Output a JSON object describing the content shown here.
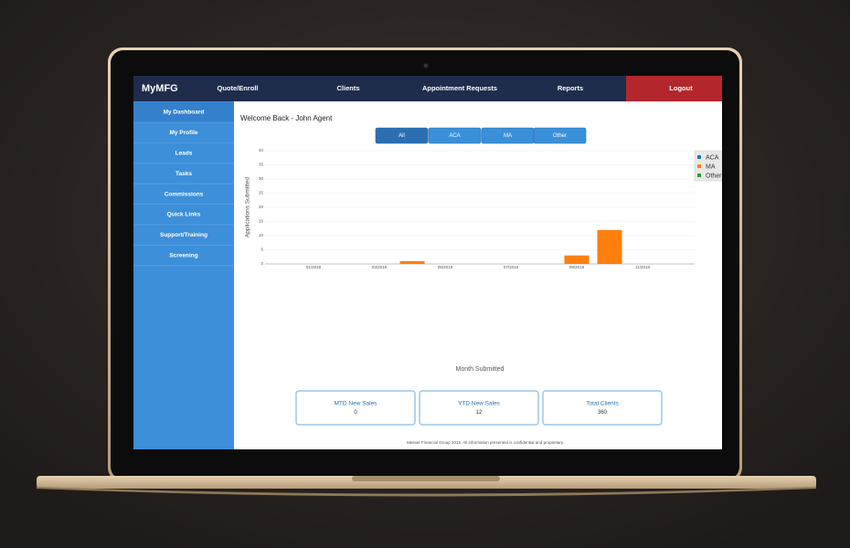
{
  "nav": {
    "logo": "MyMFG",
    "items": [
      "Quote/Enroll",
      "Clients",
      "Appointment Requests",
      "Reports"
    ],
    "logout": "Logout"
  },
  "sidebar": {
    "items": [
      "My Dashboard",
      "My Profile",
      "Leads",
      "Tasks",
      "Commissions",
      "Quick Links",
      "Support/Training",
      "Screening"
    ]
  },
  "welcome": "Welcome Back - John Agent",
  "filters": [
    "All",
    "ACA",
    "MA",
    "Other"
  ],
  "chart_data": {
    "type": "bar",
    "stacked": true,
    "y_label": "Applications Submitted",
    "x_label": "Month Submitted",
    "categories": [
      "01/2018",
      null,
      "03/2018",
      null,
      "05/2018",
      null,
      "07/2018",
      null,
      "09/2018",
      null,
      "11/2018"
    ],
    "series": [
      {
        "name": "ACA",
        "color": "#1f77b4",
        "values": [
          0,
          0,
          0,
          0,
          0,
          0,
          0,
          0,
          0,
          0,
          0
        ]
      },
      {
        "name": "MA",
        "color": "#ff7f0e",
        "values": [
          0,
          0,
          0,
          1,
          0,
          0,
          0,
          0,
          3,
          12,
          0
        ]
      },
      {
        "name": "Other",
        "color": "#2ca02c",
        "values": [
          0,
          0,
          0,
          0,
          0,
          0,
          0,
          0,
          0,
          0,
          0
        ]
      }
    ],
    "ylim": [
      0,
      40
    ],
    "yticks": [
      0,
      5,
      10,
      15,
      20,
      25,
      30,
      35,
      40
    ],
    "grid": true,
    "legend": "right"
  },
  "cards": [
    {
      "label": "MTD New Sales",
      "value": 0
    },
    {
      "label": "YTD New Sales",
      "value": 12
    },
    {
      "label": "Total Clients",
      "value": 360
    }
  ],
  "footer": "Messer Financial Group 2018. All information presented is confidential and proprietary."
}
